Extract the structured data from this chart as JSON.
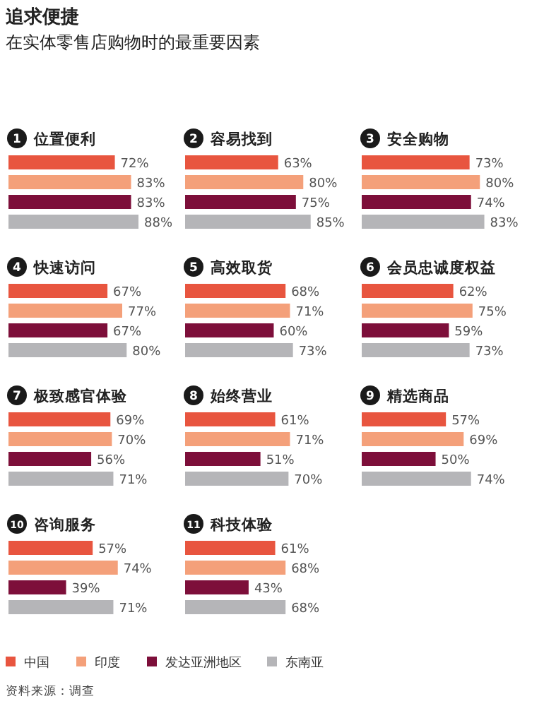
{
  "chart_data": [
    {
      "type": "other",
      "title": "追求便捷",
      "subtitle": "在实体零售店购物时的最重要因素",
      "annotations": [
        "资料来源：调查"
      ]
    },
    {
      "type": "bar",
      "orientation": "horizontal",
      "title": "1 位置便利",
      "legend": "bottom",
      "categories": [
        null
      ],
      "series": [
        {
          "name": "中国",
          "color": "#e8553f",
          "values": [
            72
          ],
          "value_labels": [
            "72%"
          ]
        },
        {
          "name": "印度",
          "color": "#f4a07a",
          "values": [
            83
          ],
          "value_labels": [
            "83%"
          ]
        },
        {
          "name": "发达亚洲地区",
          "color": "#7d0f3a",
          "values": [
            83
          ],
          "value_labels": [
            "83%"
          ]
        },
        {
          "name": "东南亚",
          "color": "#b5b5b8",
          "values": [
            88
          ],
          "value_labels": [
            "88%"
          ]
        }
      ]
    },
    {
      "type": "bar",
      "orientation": "horizontal",
      "title": "2 容易找到",
      "categories": [
        null
      ],
      "series": [
        {
          "color": "#e8553f",
          "values": [
            63
          ],
          "value_labels": [
            "63%"
          ]
        },
        {
          "color": "#f4a07a",
          "values": [
            80
          ],
          "value_labels": [
            "80%"
          ]
        },
        {
          "color": "#7d0f3a",
          "values": [
            75
          ],
          "value_labels": [
            "75%"
          ]
        },
        {
          "color": "#b5b5b8",
          "values": [
            85
          ],
          "value_labels": [
            "85%"
          ]
        }
      ]
    },
    {
      "type": "bar",
      "orientation": "horizontal",
      "title": "3 安全购物",
      "categories": [
        null
      ],
      "series": [
        {
          "color": "#e8553f",
          "values": [
            73
          ],
          "value_labels": [
            "73%"
          ]
        },
        {
          "color": "#f4a07a",
          "values": [
            80
          ],
          "value_labels": [
            "80%"
          ]
        },
        {
          "color": "#7d0f3a",
          "values": [
            74
          ],
          "value_labels": [
            "74%"
          ]
        },
        {
          "color": "#b5b5b8",
          "values": [
            83
          ],
          "value_labels": [
            "83%"
          ]
        }
      ]
    },
    {
      "type": "bar",
      "orientation": "horizontal",
      "title": "4 快速访问",
      "categories": [
        null
      ],
      "series": [
        {
          "color": "#e8553f",
          "values": [
            67
          ],
          "value_labels": [
            "67%"
          ]
        },
        {
          "color": "#f4a07a",
          "values": [
            77
          ],
          "value_labels": [
            "77%"
          ]
        },
        {
          "color": "#7d0f3a",
          "values": [
            67
          ],
          "value_labels": [
            "67%"
          ]
        },
        {
          "color": "#b5b5b8",
          "values": [
            80
          ],
          "value_labels": [
            "80%"
          ]
        }
      ]
    },
    {
      "type": "bar",
      "orientation": "horizontal",
      "title": "5 高效取货",
      "categories": [
        null
      ],
      "series": [
        {
          "color": "#e8553f",
          "values": [
            68
          ],
          "value_labels": [
            "68%"
          ]
        },
        {
          "color": "#f4a07a",
          "values": [
            71
          ],
          "value_labels": [
            "71%"
          ]
        },
        {
          "color": "#7d0f3a",
          "values": [
            60
          ],
          "value_labels": [
            "60%"
          ]
        },
        {
          "color": "#b5b5b8",
          "values": [
            73
          ],
          "value_labels": [
            "73%"
          ]
        }
      ]
    },
    {
      "type": "bar",
      "orientation": "horizontal",
      "title": "6 会员忠诚度权益",
      "categories": [
        null
      ],
      "series": [
        {
          "color": "#e8553f",
          "values": [
            62
          ],
          "value_labels": [
            "62%"
          ]
        },
        {
          "color": "#f4a07a",
          "values": [
            75
          ],
          "value_labels": [
            "75%"
          ]
        },
        {
          "color": "#7d0f3a",
          "values": [
            59
          ],
          "value_labels": [
            "59%"
          ]
        },
        {
          "color": "#b5b5b8",
          "values": [
            73
          ],
          "value_labels": [
            "73%"
          ]
        }
      ]
    },
    {
      "type": "bar",
      "orientation": "horizontal",
      "title": "7 极致感官体验",
      "categories": [
        null
      ],
      "series": [
        {
          "color": "#e8553f",
          "values": [
            69
          ],
          "value_labels": [
            "69%"
          ]
        },
        {
          "color": "#f4a07a",
          "values": [
            70
          ],
          "value_labels": [
            "70%"
          ]
        },
        {
          "color": "#7d0f3a",
          "values": [
            56
          ],
          "value_labels": [
            "56%"
          ]
        },
        {
          "color": "#b5b5b8",
          "values": [
            71
          ],
          "value_labels": [
            "71%"
          ]
        }
      ]
    },
    {
      "type": "bar",
      "orientation": "horizontal",
      "title": "8 始终营业",
      "categories": [
        null
      ],
      "series": [
        {
          "color": "#e8553f",
          "values": [
            61
          ],
          "value_labels": [
            "61%"
          ]
        },
        {
          "color": "#f4a07a",
          "values": [
            71
          ],
          "value_labels": [
            "71%"
          ]
        },
        {
          "color": "#7d0f3a",
          "values": [
            51
          ],
          "value_labels": [
            "51%"
          ]
        },
        {
          "color": "#b5b5b8",
          "values": [
            70
          ],
          "value_labels": [
            "70%"
          ]
        }
      ]
    },
    {
      "type": "bar",
      "orientation": "horizontal",
      "title": "9 精选商品",
      "categories": [
        null
      ],
      "series": [
        {
          "color": "#e8553f",
          "values": [
            57
          ],
          "value_labels": [
            "57%"
          ]
        },
        {
          "color": "#f4a07a",
          "values": [
            69
          ],
          "value_labels": [
            "69%"
          ]
        },
        {
          "color": "#7d0f3a",
          "values": [
            50
          ],
          "value_labels": [
            "50%"
          ]
        },
        {
          "color": "#b5b5b8",
          "values": [
            74
          ],
          "value_labels": [
            "74%"
          ]
        }
      ]
    },
    {
      "type": "bar",
      "orientation": "horizontal",
      "title": "10 咨询服务",
      "categories": [
        null
      ],
      "series": [
        {
          "color": "#e8553f",
          "values": [
            57
          ],
          "value_labels": [
            "57%"
          ]
        },
        {
          "color": "#f4a07a",
          "values": [
            74
          ],
          "value_labels": [
            "74%"
          ]
        },
        {
          "color": "#7d0f3a",
          "values": [
            39
          ],
          "value_labels": [
            "39%"
          ]
        },
        {
          "color": "#b5b5b8",
          "values": [
            71
          ],
          "value_labels": [
            "71%"
          ]
        }
      ]
    },
    {
      "type": "bar",
      "orientation": "horizontal",
      "title": "11 科技体验",
      "categories": [
        null
      ],
      "series": [
        {
          "color": "#e8553f",
          "values": [
            61
          ],
          "value_labels": [
            "61%"
          ]
        },
        {
          "color": "#f4a07a",
          "values": [
            68
          ],
          "value_labels": [
            "68%"
          ]
        },
        {
          "color": "#7d0f3a",
          "values": [
            43
          ],
          "value_labels": [
            "43%"
          ]
        },
        {
          "color": "#b5b5b8",
          "values": [
            68
          ],
          "value_labels": [
            "68%"
          ]
        }
      ]
    }
  ]
}
